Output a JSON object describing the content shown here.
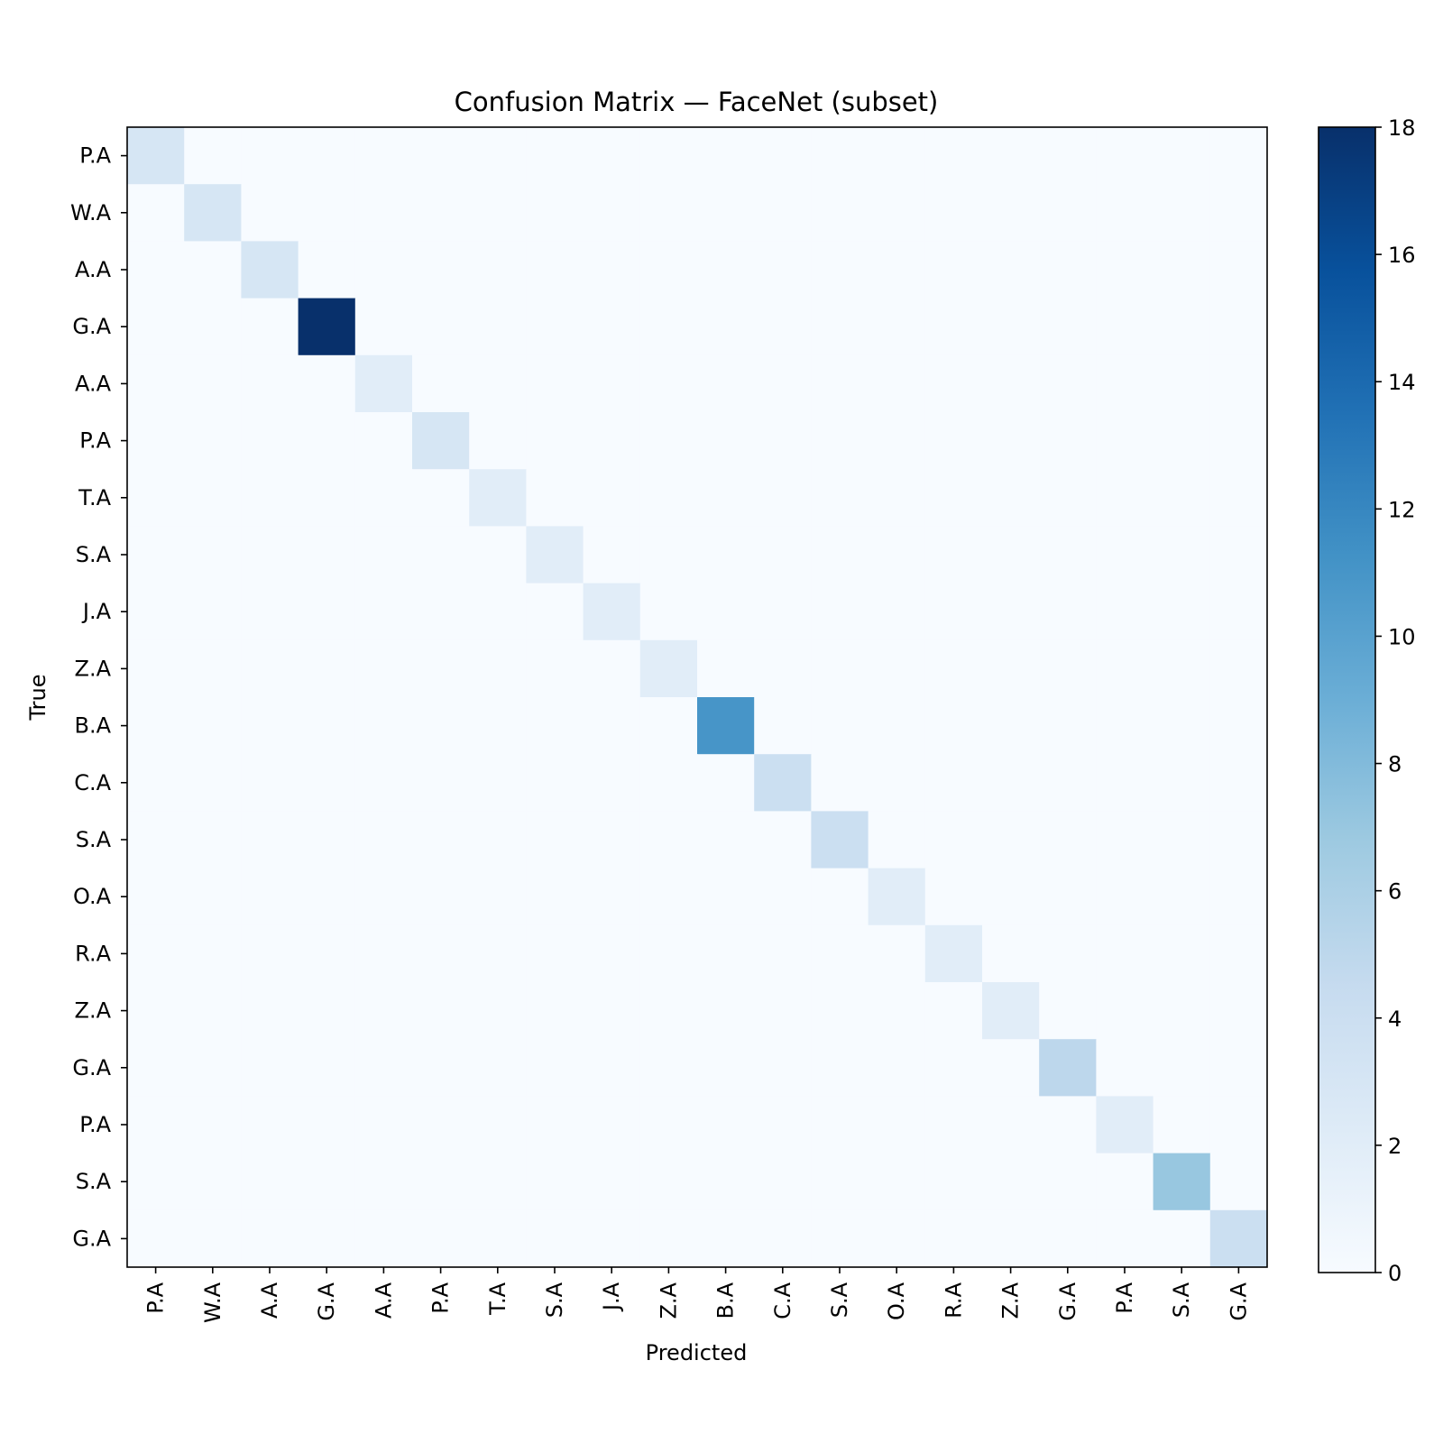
{
  "chart_data": {
    "type": "heatmap",
    "title": "Confusion Matrix — FaceNet (subset)",
    "xlabel": "Predicted",
    "ylabel": "True",
    "x_categories": [
      "P.A",
      "W.A",
      "A.A",
      "G.A",
      "A.A",
      "P.A",
      "T.A",
      "S.A",
      "J.A",
      "Z.A",
      "B.A",
      "C.A",
      "S.A",
      "O.A",
      "R.A",
      "Z.A",
      "G.A",
      "P.A",
      "S.A",
      "G.A"
    ],
    "y_categories": [
      "P.A",
      "W.A",
      "A.A",
      "G.A",
      "A.A",
      "P.A",
      "T.A",
      "S.A",
      "J.A",
      "Z.A",
      "B.A",
      "C.A",
      "S.A",
      "O.A",
      "R.A",
      "Z.A",
      "G.A",
      "P.A",
      "S.A",
      "G.A"
    ],
    "diagonal_values": [
      3,
      3,
      3,
      18,
      2,
      3,
      2,
      2,
      2,
      2,
      11,
      4,
      4,
      2,
      2,
      2,
      5,
      2,
      7,
      4
    ],
    "off_diagonal_value": 0,
    "colormap": "Blues",
    "colorbar": {
      "range": [
        0,
        18
      ],
      "ticks": [
        0,
        2,
        4,
        6,
        8,
        10,
        12,
        14,
        16,
        18
      ]
    },
    "grid": false
  }
}
